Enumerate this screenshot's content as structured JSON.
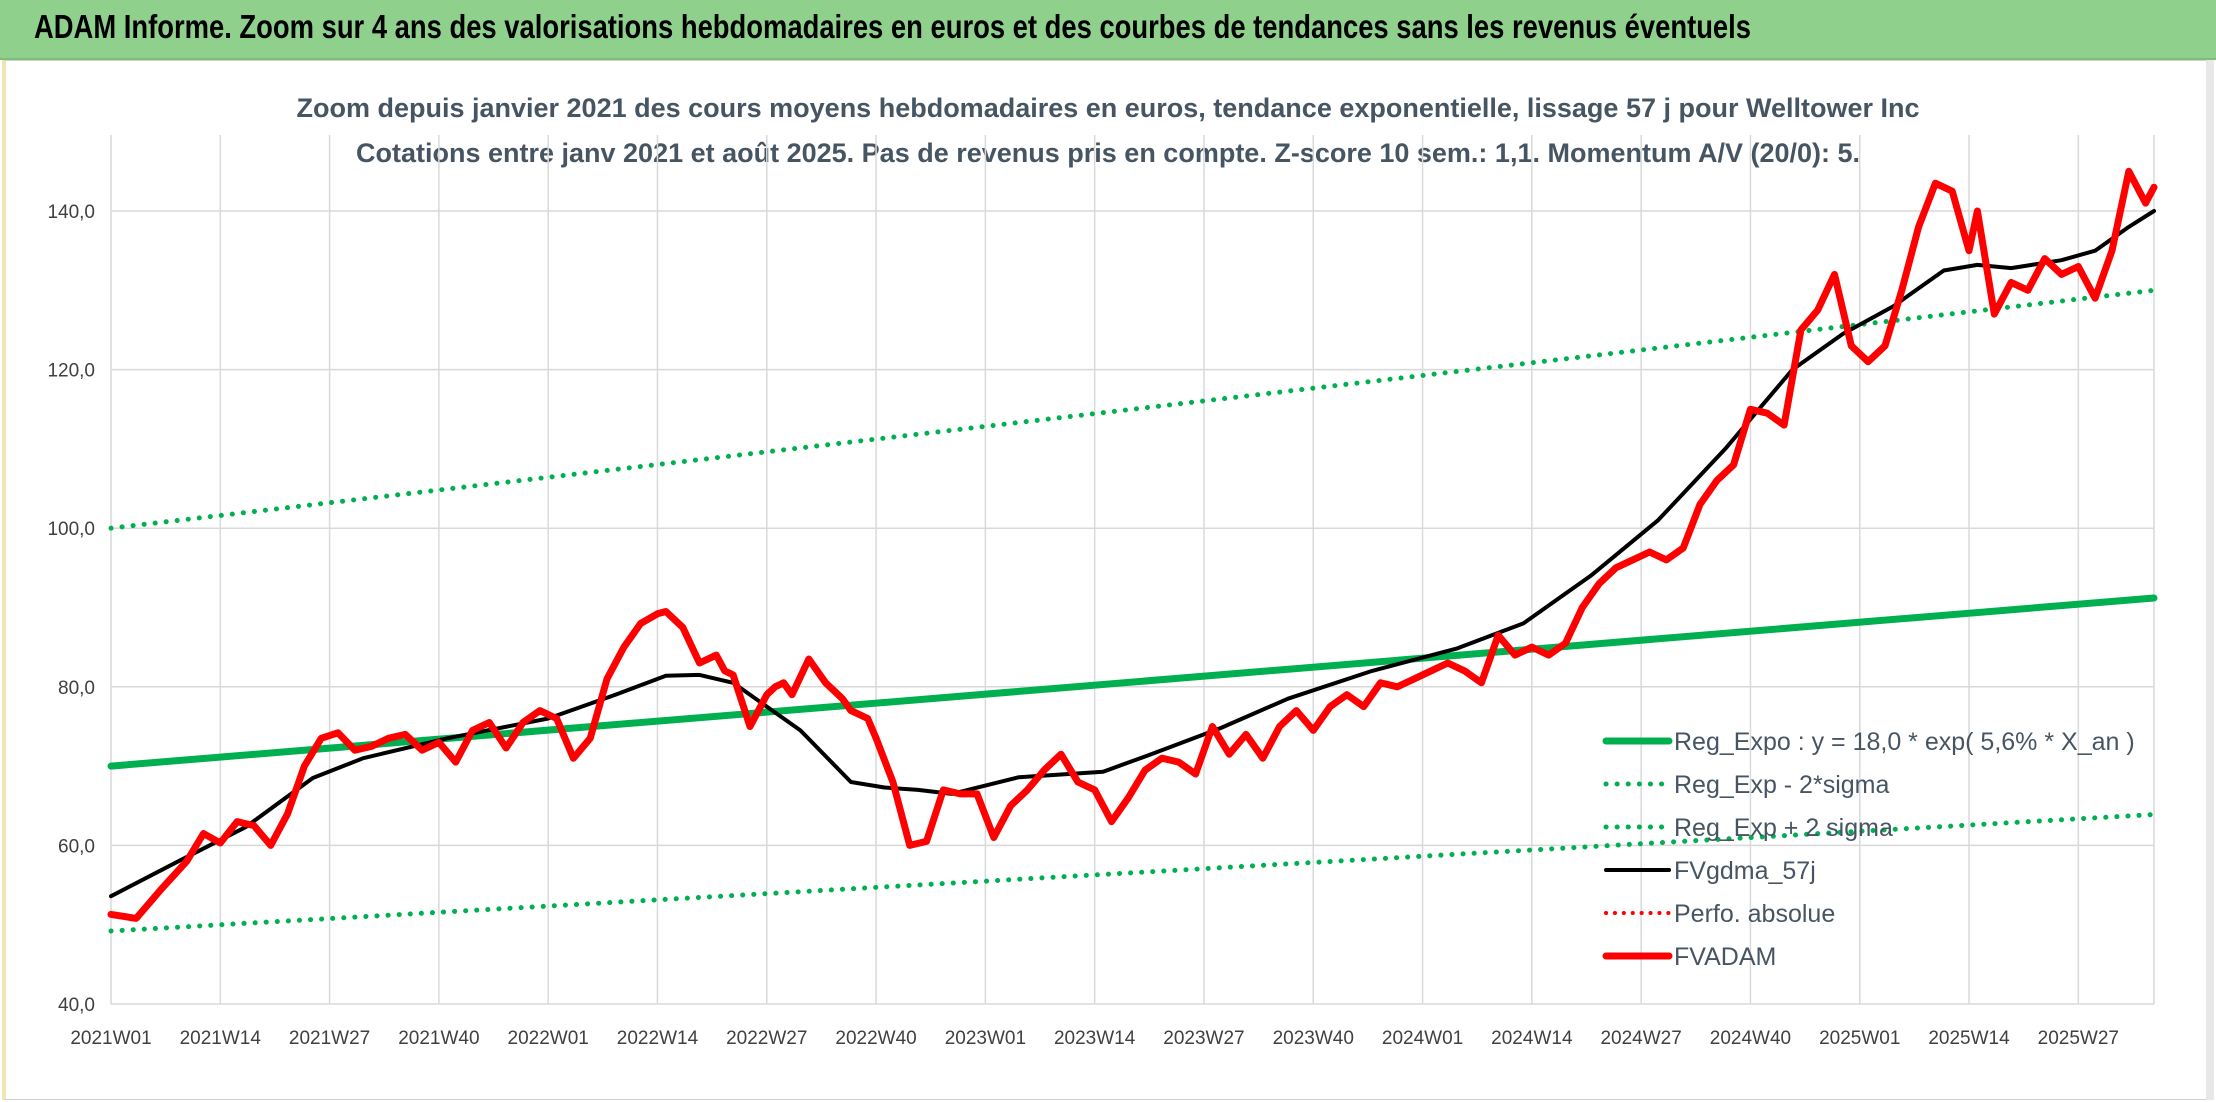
{
  "header": {
    "title": "ADAM Informe. Zoom sur 4 ans des valorisations hebdomadaires en euros et des courbes de tendances sans les revenus éventuels"
  },
  "chart_data": {
    "type": "line",
    "title": "Zoom depuis janvier 2021 des cours moyens hebdomadaires en euros, tendance exponentielle, lissage 57 j pour Welltower Inc",
    "subtitle": "Cotations entre janv 2021 et août 2025. Pas de revenus pris en compte. Z-score 10 sem.: 1,1. Momentum A/V (20/0): 5.",
    "xlabel": "",
    "ylabel": "",
    "ylim": [
      40,
      148
    ],
    "grid": true,
    "legend_position": "bottom-right",
    "y_ticks": [
      "40,0",
      "60,0",
      "80,0",
      "100,0",
      "120,0",
      "140,0"
    ],
    "x_tick_labels": [
      "2021W01",
      "2021W14",
      "2021W27",
      "2021W40",
      "2022W01",
      "2022W14",
      "2022W27",
      "2022W40",
      "2023W01",
      "2023W14",
      "2023W27",
      "2023W40",
      "2024W01",
      "2024W14",
      "2024W27",
      "2024W40",
      "2025W01",
      "2025W14",
      "2025W27"
    ],
    "x_week_index_range": [
      0,
      243
    ],
    "series": [
      {
        "name": "Reg_Expo : y = 18,0 * exp( 5,6% *  X_an )",
        "color": "#00b050",
        "style": "solid",
        "width": 7,
        "x": [
          0,
          243
        ],
        "y": [
          70.0,
          91.2
        ]
      },
      {
        "name": "Reg_Exp - 2*sigma",
        "color": "#00b050",
        "style": "dotted",
        "width": 5,
        "x": [
          0,
          243
        ],
        "y": [
          49.2,
          63.9
        ]
      },
      {
        "name": "Reg_Exp + 2 sigma",
        "color": "#00b050",
        "style": "dotted",
        "width": 5,
        "x": [
          0,
          243
        ],
        "y": [
          100.0,
          130.0
        ]
      },
      {
        "name": "FVgdma_57j",
        "color": "#000000",
        "style": "solid",
        "width": 4,
        "x": [
          0,
          8,
          16,
          24,
          30,
          40,
          52,
          60,
          66,
          70,
          74,
          78,
          82,
          88,
          92,
          96,
          100,
          108,
          118,
          124,
          132,
          140,
          150,
          160,
          168,
          176,
          184,
          192,
          200,
          206,
          212,
          218,
          222,
          226,
          232,
          236,
          240,
          243
        ],
        "y": [
          53.6,
          58.0,
          62.3,
          68.5,
          71.0,
          73.5,
          76.0,
          79.0,
          81.4,
          81.5,
          80.5,
          77.5,
          74.5,
          68.0,
          67.3,
          67.0,
          66.5,
          68.6,
          69.3,
          71.6,
          74.8,
          78.5,
          82.0,
          84.8,
          88.0,
          94.0,
          101.0,
          110.0,
          120.0,
          124.5,
          128.0,
          132.5,
          133.2,
          132.8,
          133.8,
          135.0,
          138.0,
          140.0
        ]
      },
      {
        "name": "Perfo. absolue",
        "color": "#ff0000",
        "style": "dotted",
        "width": 4,
        "x": [],
        "y": []
      },
      {
        "name": "FVADAM",
        "color": "#ff0000",
        "style": "solid",
        "width": 7,
        "x": [
          0,
          3,
          6,
          9,
          11,
          13,
          15,
          17,
          19,
          21,
          23,
          25,
          27,
          29,
          31,
          33,
          35,
          37,
          39,
          41,
          43,
          45,
          47,
          49,
          51,
          53,
          55,
          57,
          59,
          61,
          63,
          65,
          66,
          67,
          68,
          70,
          72,
          73,
          74,
          76,
          78,
          79,
          80,
          81,
          83,
          85,
          87,
          88,
          90,
          91,
          93,
          95,
          97,
          99,
          101,
          103,
          105,
          107,
          109,
          111,
          113,
          115,
          117,
          119,
          121,
          123,
          125,
          127,
          129,
          131,
          133,
          135,
          137,
          139,
          141,
          143,
          145,
          147,
          149,
          151,
          153,
          155,
          157,
          159,
          161,
          163,
          165,
          167,
          169,
          171,
          173,
          175,
          177,
          179,
          181,
          183,
          185,
          187,
          189,
          191,
          193,
          195,
          197,
          199,
          201,
          203,
          205,
          207,
          209,
          211,
          213,
          215,
          217,
          219,
          221,
          222,
          224,
          226,
          228,
          230,
          232,
          234,
          236,
          238,
          240,
          242,
          243
        ],
        "y": [
          51.3,
          50.8,
          54.5,
          58.0,
          61.5,
          60.3,
          63.0,
          62.5,
          60.0,
          64.0,
          70.0,
          73.5,
          74.2,
          72.0,
          72.5,
          73.5,
          74.0,
          72.0,
          73.0,
          70.5,
          74.5,
          75.5,
          72.3,
          75.5,
          77.0,
          76.0,
          71.0,
          73.5,
          81.0,
          85.0,
          88.0,
          89.2,
          89.5,
          88.5,
          87.5,
          83.0,
          84.0,
          82.0,
          81.5,
          75.0,
          79.0,
          80.0,
          80.5,
          79.0,
          83.5,
          80.5,
          78.5,
          77.0,
          76.0,
          73.5,
          68.0,
          60.0,
          60.5,
          67.0,
          66.5,
          66.5,
          61.0,
          65.0,
          67.0,
          69.5,
          71.5,
          68.0,
          67.0,
          63.0,
          66.0,
          69.5,
          71.0,
          70.5,
          69.0,
          75.0,
          71.5,
          74.0,
          71.0,
          75.0,
          77.0,
          74.5,
          77.5,
          79.0,
          77.5,
          80.5,
          80.0,
          81.0,
          82.0,
          83.0,
          82.0,
          80.5,
          86.5,
          84.0,
          85.0,
          84.0,
          85.5,
          90.0,
          93.0,
          95.0,
          96.0,
          97.0,
          96.0,
          97.5,
          103.0,
          106.0,
          108.0,
          115.0,
          114.5,
          113.0,
          125.0,
          127.5,
          132.0,
          123.0,
          121.0,
          123.0,
          130.0,
          138.0,
          143.5,
          142.5,
          135.0,
          140.0,
          127.0,
          131.0,
          130.0,
          134.0,
          132.0,
          133.0,
          129.0,
          135.0,
          145.0,
          141.0,
          143.0
        ]
      }
    ]
  }
}
